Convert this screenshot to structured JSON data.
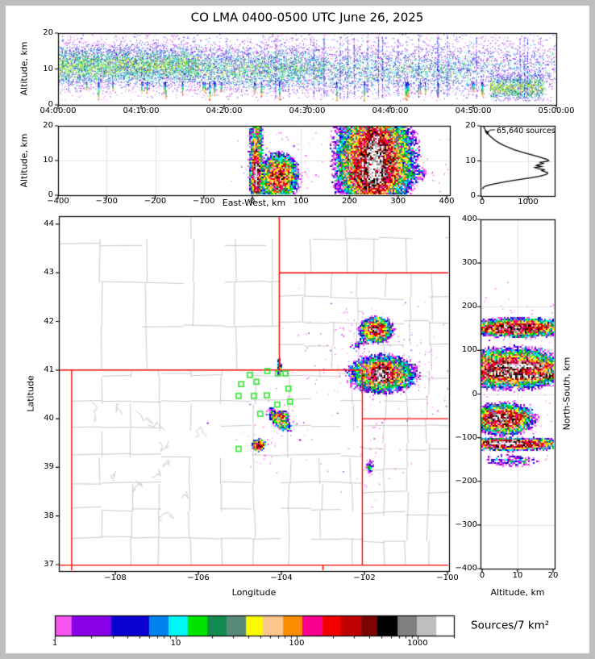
{
  "title": "CO LMA 0400-0500 UTC June 26, 2025",
  "frame_color": "#BEBEBE",
  "accent_colors": {
    "state_border": "#FF0000",
    "county_line": "#C9C9C9",
    "station_green": "#2FE62F",
    "gridline": "#E4E4E4",
    "curve_black": "#000000"
  },
  "colormap": {
    "colors": [
      "#F655F0",
      "#8A00E8",
      "#0A00D2",
      "#0082F0",
      "#00F6F6",
      "#00E400",
      "#108C50",
      "#588878",
      "#FBFB00",
      "#FBC98E",
      "#FB8C00",
      "#FA0090",
      "#F30000",
      "#BE0000",
      "#7E0303",
      "#000000",
      "#808080",
      "#BEBEBE",
      "#FFFFFF"
    ],
    "bounds": [
      0,
      0.042,
      0.141,
      0.236,
      0.285,
      0.333,
      0.382,
      0.43,
      0.479,
      0.521,
      0.572,
      0.62,
      0.671,
      0.717,
      0.768,
      0.808,
      0.859,
      0.907,
      0.956,
      1.0
    ],
    "vmin": 1,
    "vmax": 2000
  },
  "panels": {
    "time_altitude": {
      "ylabel": "Altitude, km",
      "yticks": [
        {
          "v": 0,
          "label": "0"
        },
        {
          "v": 10,
          "label": "10"
        },
        {
          "v": 20,
          "label": "20"
        }
      ],
      "xticks": [
        {
          "v": 0,
          "label": "04:00:00"
        },
        {
          "v": 10,
          "label": "04:10:00"
        },
        {
          "v": 20,
          "label": "04:20:00"
        },
        {
          "v": 30,
          "label": "04:30:00"
        },
        {
          "v": 40,
          "label": "04:40:00"
        },
        {
          "v": 50,
          "label": "04:50:00"
        },
        {
          "v": 60,
          "label": "05:00:00"
        }
      ]
    },
    "ew_altitude": {
      "ylabel": "Altitude, km",
      "xlabel": "East-West, km",
      "yticks": [
        {
          "v": 0,
          "label": "0"
        },
        {
          "v": 10,
          "label": "10"
        },
        {
          "v": 20,
          "label": "20"
        }
      ],
      "xticks": [
        {
          "v": -400,
          "label": "−400"
        },
        {
          "v": -300,
          "label": "−300"
        },
        {
          "v": -200,
          "label": "−200"
        },
        {
          "v": -100,
          "label": "−100"
        },
        {
          "v": 0,
          "label": "0"
        },
        {
          "v": 100,
          "label": "100"
        },
        {
          "v": 200,
          "label": "200"
        },
        {
          "v": 300,
          "label": "300"
        },
        {
          "v": 400,
          "label": "400"
        }
      ]
    },
    "histogram": {
      "annotation": "65,640 sources",
      "yticks": [
        {
          "v": 0,
          "label": "0"
        },
        {
          "v": 10,
          "label": "10"
        },
        {
          "v": 20,
          "label": "20"
        }
      ],
      "xticks": [
        {
          "v": 0,
          "label": "0"
        },
        {
          "v": 1000,
          "label": "1000"
        }
      ]
    },
    "map": {
      "ylabel": "Latitude",
      "xlabel": "Longitude",
      "yticks": [
        {
          "v": 37,
          "label": "37"
        },
        {
          "v": 38,
          "label": "38"
        },
        {
          "v": 39,
          "label": "39"
        },
        {
          "v": 40,
          "label": "40"
        },
        {
          "v": 41,
          "label": "41"
        },
        {
          "v": 42,
          "label": "42"
        },
        {
          "v": 43,
          "label": "43"
        },
        {
          "v": 44,
          "label": "44"
        }
      ],
      "xticks": [
        {
          "v": -108,
          "label": "−108"
        },
        {
          "v": -106,
          "label": "−106"
        },
        {
          "v": -104,
          "label": "−104"
        },
        {
          "v": -102,
          "label": "−102"
        },
        {
          "v": -100,
          "label": "−100"
        }
      ]
    },
    "ns_altitude": {
      "ylabel_right": "North-South, km",
      "xlabel": "Altitude, km",
      "yticks": [
        {
          "v": 400,
          "label": "400"
        },
        {
          "v": 300,
          "label": "300"
        },
        {
          "v": 200,
          "label": "200"
        },
        {
          "v": 100,
          "label": "100"
        },
        {
          "v": 0,
          "label": "0"
        },
        {
          "v": -100,
          "label": "−100"
        },
        {
          "v": -200,
          "label": "−200"
        },
        {
          "v": -300,
          "label": "−300"
        },
        {
          "v": -400,
          "label": "−400"
        }
      ],
      "xticks": [
        {
          "v": 0,
          "label": "0"
        },
        {
          "v": 10,
          "label": "10"
        },
        {
          "v": 20,
          "label": "20"
        }
      ]
    },
    "colorbar": {
      "label": "Sources/7 km²",
      "ticks": [
        {
          "v": 1,
          "label": "1"
        },
        {
          "v": 10,
          "label": "10"
        },
        {
          "v": 100,
          "label": "100"
        },
        {
          "v": 1000,
          "label": "1000"
        }
      ]
    }
  },
  "chart_data": [
    {
      "id": "time_altitude",
      "type": "scatter",
      "x_range_minutes": [
        0,
        60
      ],
      "ylim": [
        0,
        20
      ],
      "clusters": [
        {
          "t0": 0,
          "t1": 17,
          "alt_mean": 11,
          "alt_sd": 3.1,
          "n": 5200,
          "peak": 5.5
        },
        {
          "t0": 17,
          "t1": 32,
          "alt_mean": 10,
          "alt_sd": 3.3,
          "n": 3200,
          "peak": 4.2
        },
        {
          "t0": 32,
          "t1": 50,
          "alt_mean": 9.5,
          "alt_sd": 3.5,
          "n": 2300,
          "peak": 3.4
        },
        {
          "t0": 50,
          "t1": 60,
          "alt_mean": 10,
          "alt_sd": 4.0,
          "n": 800,
          "peak": 2.2
        },
        {
          "t0": 52,
          "t1": 58.5,
          "alt_mean": 5,
          "alt_sd": 1.9,
          "n": 1300,
          "peak": 6.5
        },
        {
          "t0": 0,
          "t1": 60,
          "alt_mean": 14,
          "alt_sd": 5,
          "n": 1500,
          "peak": 1.2
        }
      ],
      "streaks": {
        "count": 30,
        "t0": 3,
        "t1": 52,
        "alt_top": 6.4,
        "alt_bot_min": 1.0,
        "alt_bot_max": 4.2
      },
      "tall_columns": {
        "count": 18,
        "t0": 24,
        "t1": 58
      }
    },
    {
      "id": "ew_altitude",
      "type": "heatmap-scatter",
      "xlim": [
        -400,
        400
      ],
      "ylim": [
        0,
        20
      ],
      "clusters": [
        {
          "x": 6,
          "y": 12.5,
          "sx": 5,
          "sy": 5,
          "amp": 50
        },
        {
          "x": 6,
          "y": 6,
          "sx": 4.5,
          "sy": 2.6,
          "amp": 380
        },
        {
          "x": 7,
          "y": 6.5,
          "sx": 2.2,
          "sy": 1.9,
          "amp": 1700
        },
        {
          "x": 52,
          "y": 5.5,
          "sx": 14,
          "sy": 2.3,
          "amp": 150
        },
        {
          "x": 250,
          "y": 10.5,
          "sx": 26,
          "sy": 5.2,
          "amp": 280
        },
        {
          "x": 251,
          "y": 10,
          "sx": 10,
          "sy": 3.9,
          "amp": 1700
        },
        {
          "x": 243,
          "y": 5.8,
          "sx": 19,
          "sy": 1.7,
          "amp": 420
        },
        {
          "x": 300,
          "y": 5.4,
          "sx": 26,
          "sy": 1.1,
          "rot": -9,
          "amp": 6
        }
      ],
      "halos": [
        {
          "x": 252,
          "y": 11,
          "sx": 48,
          "sy": 5.5,
          "n": 240
        },
        {
          "x": 6,
          "y": 12,
          "sx": 8,
          "sy": 6,
          "n": 70
        },
        {
          "x": 52,
          "y": 6,
          "sx": 18,
          "sy": 3.5,
          "n": 50
        }
      ]
    },
    {
      "id": "source_histogram",
      "type": "line",
      "xlim": [
        0,
        1578
      ],
      "ylim": [
        0,
        20
      ],
      "annotation": "65,640 sources",
      "points_alt_count": [
        [
          2,
          5
        ],
        [
          2.4,
          25
        ],
        [
          2.8,
          70
        ],
        [
          3.2,
          170
        ],
        [
          3.6,
          320
        ],
        [
          4,
          480
        ],
        [
          4.4,
          660
        ],
        [
          4.8,
          860
        ],
        [
          5.2,
          1060
        ],
        [
          5.6,
          1240
        ],
        [
          6,
          1360
        ],
        [
          6.3,
          1420
        ],
        [
          6.6,
          1430
        ],
        [
          6.9,
          1370
        ],
        [
          7.2,
          1300
        ],
        [
          7.5,
          1350
        ],
        [
          7.8,
          1220
        ],
        [
          8.1,
          1150
        ],
        [
          8.4,
          1290
        ],
        [
          8.7,
          1180
        ],
        [
          9,
          1240
        ],
        [
          9.3,
          1330
        ],
        [
          9.6,
          1270
        ],
        [
          9.9,
          1420
        ],
        [
          10.1,
          1450
        ],
        [
          10.4,
          1420
        ],
        [
          10.8,
          1330
        ],
        [
          11.2,
          1230
        ],
        [
          11.6,
          1120
        ],
        [
          12,
          1010
        ],
        [
          12.4,
          900
        ],
        [
          12.8,
          800
        ],
        [
          13.2,
          700
        ],
        [
          13.7,
          600
        ],
        [
          14.2,
          510
        ],
        [
          14.7,
          430
        ],
        [
          15.2,
          360
        ],
        [
          15.7,
          300
        ],
        [
          16.2,
          250
        ],
        [
          16.7,
          205
        ],
        [
          17.2,
          165
        ],
        [
          17.7,
          130
        ],
        [
          18.2,
          100
        ],
        [
          18.7,
          75
        ],
        [
          19.2,
          55
        ],
        [
          19.6,
          40
        ],
        [
          20,
          30
        ]
      ]
    },
    {
      "id": "map",
      "type": "heatmap-scatter",
      "lon_range": [
        -109.36,
        -99.96
      ],
      "lat_range": [
        36.87,
        44.15
      ],
      "stations_lonlat": [
        [
          -104.34,
          40.98
        ],
        [
          -104.76,
          40.9
        ],
        [
          -104.08,
          40.93
        ],
        [
          -103.9,
          40.93
        ],
        [
          -104.97,
          40.71
        ],
        [
          -104.6,
          40.76
        ],
        [
          -105.03,
          40.47
        ],
        [
          -104.66,
          40.47
        ],
        [
          -104.35,
          40.48
        ],
        [
          -103.83,
          40.62
        ],
        [
          -103.79,
          40.35
        ],
        [
          -104.1,
          40.29
        ],
        [
          -104.51,
          40.1
        ],
        [
          -105.03,
          39.38
        ]
      ],
      "state_borders": [
        [
          [
            -109.05,
            36.87
          ],
          [
            -109.05,
            41.0
          ]
        ],
        [
          [
            -109.36,
            41.0
          ],
          [
            -102.05,
            41.0
          ]
        ],
        [
          [
            -104.05,
            41.0
          ],
          [
            -104.05,
            44.15
          ]
        ],
        [
          [
            -104.05,
            43.0
          ],
          [
            -99.96,
            43.0
          ]
        ],
        [
          [
            -102.05,
            41.0
          ],
          [
            -102.05,
            36.99
          ]
        ],
        [
          [
            -102.05,
            40.0
          ],
          [
            -99.96,
            40.0
          ]
        ],
        [
          [
            -109.36,
            36.99
          ],
          [
            -99.96,
            36.99
          ]
        ],
        [
          [
            -103.0,
            36.99
          ],
          [
            -103.0,
            36.87
          ]
        ]
      ],
      "clusters": [
        {
          "x": -101.59,
          "y": 40.93,
          "sx": 0.27,
          "sy": 0.13,
          "amp": 130
        },
        {
          "x": -101.6,
          "y": 40.95,
          "sx": 0.13,
          "sy": 0.08,
          "amp": 800
        },
        {
          "x": -101.63,
          "y": 40.84,
          "sx": 0.05,
          "sy": 0.028,
          "amp": 1700
        },
        {
          "x": -101.73,
          "y": 41.84,
          "sx": 0.13,
          "sy": 0.085,
          "amp": 240
        },
        {
          "x": -101.76,
          "y": 41.83,
          "sx": 0.05,
          "sy": 0.04,
          "amp": 650
        },
        {
          "x": -102.0,
          "y": 41.63,
          "sx": 0.2,
          "sy": 0.045,
          "rot": -33,
          "amp": 3.5
        },
        {
          "x": -104.06,
          "y": 39.99,
          "sx": 0.13,
          "sy": 0.05,
          "rot": 42,
          "amp": 60
        },
        {
          "x": -103.99,
          "y": 40.07,
          "sx": 0.05,
          "sy": 0.04,
          "amp": 110
        },
        {
          "x": -104.56,
          "y": 39.47,
          "sx": 0.05,
          "sy": 0.038,
          "amp": 550
        },
        {
          "x": -101.88,
          "y": 39.05,
          "sx": 0.04,
          "sy": 0.07,
          "amp": 5
        },
        {
          "x": -104.07,
          "y": 41.08,
          "sx": 0.018,
          "sy": 0.075,
          "amp": 15
        }
      ],
      "halos": [
        {
          "x": -101.6,
          "y": 40.95,
          "sx": 0.45,
          "sy": 0.22,
          "n": 170
        },
        {
          "x": -101.88,
          "y": 41.73,
          "sx": 0.33,
          "sy": 0.18,
          "n": 80
        },
        {
          "x": -104.08,
          "y": 40.02,
          "sx": 0.28,
          "sy": 0.18,
          "n": 45
        },
        {
          "x": -104.55,
          "y": 39.42,
          "sx": 0.11,
          "sy": 0.11,
          "n": 22
        },
        {
          "x": -101.82,
          "y": 39.1,
          "sx": 0.22,
          "sy": 0.2,
          "n": 35
        }
      ]
    },
    {
      "id": "ns_altitude",
      "type": "heatmap-scatter",
      "xlim": [
        0,
        20
      ],
      "ylim": [
        -400,
        400
      ],
      "clusters": [
        {
          "x": 10,
          "y": 154,
          "sx": 4.5,
          "sy": 7,
          "amp": 230
        },
        {
          "x": 6.5,
          "y": 152,
          "sx": 2.5,
          "sy": 5,
          "amp": 550
        },
        {
          "x": 15,
          "y": 158,
          "sx": 3,
          "sy": 5,
          "amp": 60
        },
        {
          "x": 8,
          "y": 60,
          "sx": 5,
          "sy": 15,
          "amp": 230
        },
        {
          "x": 10,
          "y": 66,
          "sx": 3.5,
          "sy": 3.2,
          "amp": 2400
        },
        {
          "x": 12,
          "y": 42,
          "sx": 4.5,
          "sy": 2.2,
          "amp": 1700
        },
        {
          "x": 5,
          "y": 50,
          "sx": 2.5,
          "sy": 5,
          "amp": 650
        },
        {
          "x": 5.5,
          "y": -55,
          "sx": 2.8,
          "sy": 11,
          "amp": 330
        },
        {
          "x": 4.5,
          "y": -52,
          "sx": 1.6,
          "sy": 5,
          "amp": 750
        },
        {
          "x": 8,
          "y": -113,
          "sx": 5.5,
          "sy": 4.5,
          "amp": 330
        },
        {
          "x": 5.5,
          "y": -111,
          "sx": 2.5,
          "sy": 2.7,
          "amp": 2400
        },
        {
          "x": 8,
          "y": -150,
          "sx": 4,
          "sy": 8,
          "amp": 2.2
        }
      ],
      "halos": [
        {
          "x": 9,
          "y": 150,
          "sx": 6,
          "sy": 20,
          "n": 110
        },
        {
          "x": 9,
          "y": 60,
          "sx": 7,
          "sy": 24,
          "n": 130
        },
        {
          "x": 6,
          "y": -60,
          "sx": 5,
          "sy": 16,
          "n": 60
        },
        {
          "x": 9,
          "y": -116,
          "sx": 7,
          "sy": 9,
          "n": 70
        }
      ]
    }
  ]
}
